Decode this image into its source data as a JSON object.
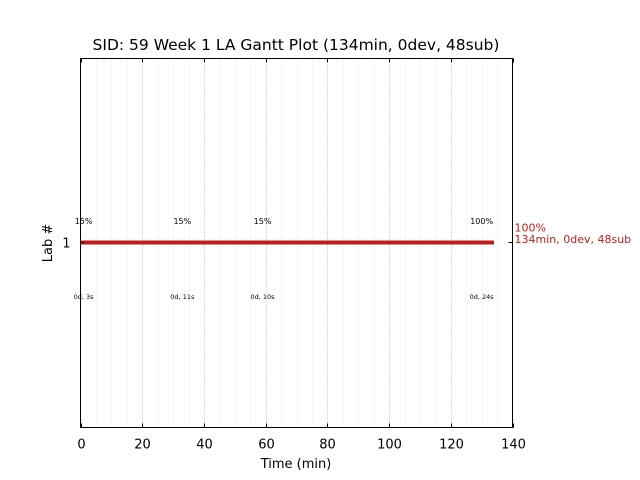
{
  "chart_data": {
    "type": "gantt",
    "title": "SID: 59 Week 1 LA Gantt Plot (134min, 0dev, 48sub)",
    "xlabel": "Time (min)",
    "ylabel": "Lab #",
    "xlim": [
      0,
      140
    ],
    "xticks": [
      "0",
      "20",
      "40",
      "60",
      "80",
      "100",
      "120",
      "140"
    ],
    "major_grid_step": 20,
    "minor_grid_step": 5,
    "grid": true,
    "rows": [
      {
        "label": "1",
        "start": 0,
        "end": 134,
        "color": "#c11b1b",
        "side_label_pct": "100%",
        "side_label_summary": "134min, 0dev, 48sub",
        "markers": [
          {
            "x": 1,
            "pct": "15%",
            "detail": "0d, 3s"
          },
          {
            "x": 33,
            "pct": "15%",
            "detail": "0d, 11s"
          },
          {
            "x": 59,
            "pct": "15%",
            "detail": "0d, 10s"
          },
          {
            "x": 130,
            "pct": "100%",
            "detail": "0d, 24s"
          }
        ]
      }
    ]
  }
}
